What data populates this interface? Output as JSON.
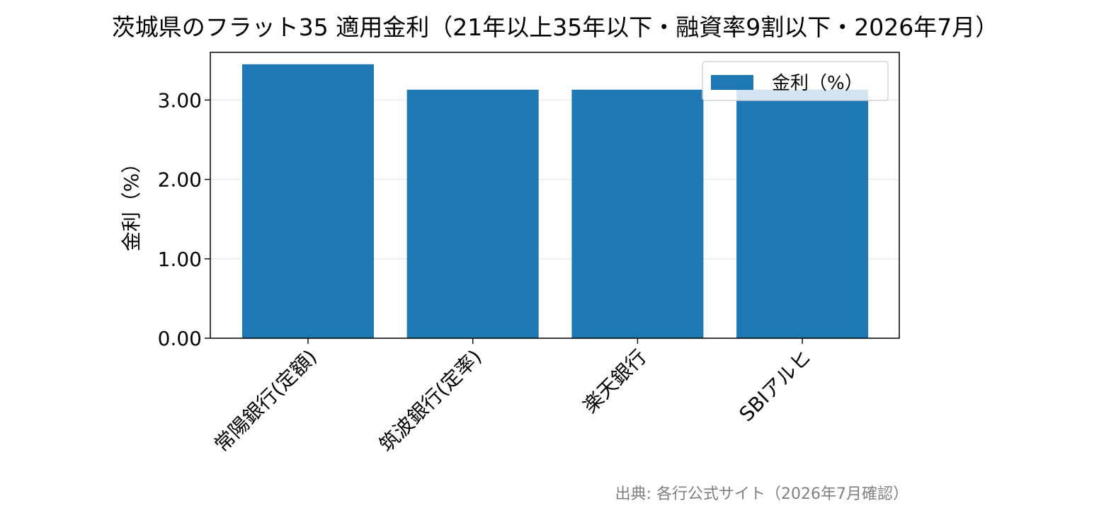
{
  "chart_data": {
    "type": "bar",
    "title": "茨城県のフラット35 適用金利（21年以上35年以下・融資率9割以下・2026年7月）",
    "xlabel": "",
    "ylabel": "金利（%）",
    "categories": [
      "常陽銀行(定額)",
      "筑波銀行(定率)",
      "楽天銀行",
      "SBIアルヒ"
    ],
    "series": [
      {
        "name": "金利（%）",
        "values": [
          3.45,
          3.13,
          3.13,
          3.13
        ]
      }
    ],
    "ylim": [
      0,
      3.6
    ],
    "yticks": [
      "0.00",
      "1.00",
      "2.00",
      "3.00"
    ],
    "grid": "y",
    "legend_position": "top-right",
    "bar_color": "#1f77b4",
    "source": "出典: 各行公式サイト（2026年7月確認）"
  }
}
